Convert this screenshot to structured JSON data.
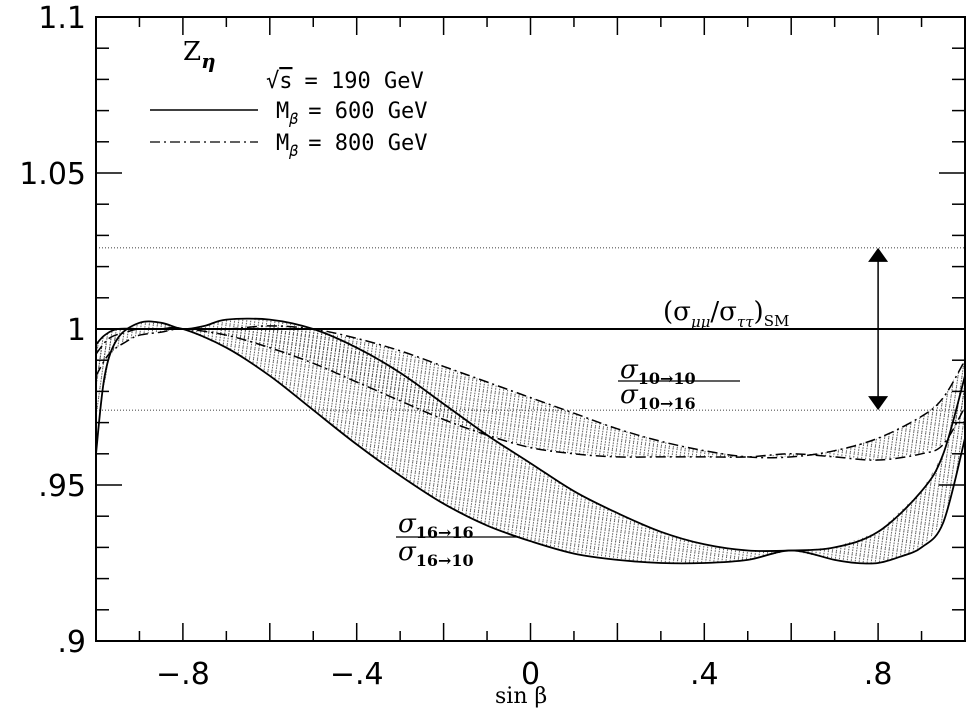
{
  "chart_data": {
    "type": "line",
    "title": "",
    "xlabel": "sin β",
    "ylabel": "",
    "xlim": [
      -1,
      1
    ],
    "ylim": [
      0.9,
      1.1
    ],
    "x_ticks": [
      {
        "value": -0.8,
        "label": "−.8"
      },
      {
        "value": -0.4,
        "label": "−.4"
      },
      {
        "value": 0,
        "label": "0"
      },
      {
        "value": 0.4,
        "label": ".4"
      },
      {
        "value": 0.8,
        "label": ".8"
      }
    ],
    "y_ticks": [
      {
        "value": 0.9,
        "label": ".9"
      },
      {
        "value": 0.95,
        "label": ".95"
      },
      {
        "value": 1.0,
        "label": "1"
      },
      {
        "value": 1.05,
        "label": "1.05"
      },
      {
        "value": 1.1,
        "label": "1.1"
      }
    ],
    "panel_label": "Z",
    "panel_label_sub": "η",
    "legend": {
      "placement": "top-left",
      "energy": {
        "prefix": "√",
        "symbol": "s",
        "value": "=  190  GeV"
      },
      "entries": [
        {
          "style": "solid",
          "symbol": "M",
          "sub": "β",
          "value": "=  600  GeV"
        },
        {
          "style": "dashdot",
          "symbol": "M",
          "sub": "β",
          "value": "=  800  GeV"
        }
      ]
    },
    "reference": {
      "y": 1.0,
      "label": "(σ",
      "label_sub1": "μμ",
      "label_mid": "/σ",
      "label_sub2": "ττ",
      "label_end": ")",
      "label_sub3": "SM"
    },
    "band": {
      "upper": 1.026,
      "lower": 0.974,
      "arrow_x": 0.8
    },
    "ratio_labels": [
      {
        "num": "σ",
        "num_sub": "10→10",
        "den": "σ",
        "den_sub": "10→16"
      },
      {
        "num": "σ",
        "num_sub": "16→16",
        "den": "σ",
        "den_sub": "16→10"
      }
    ],
    "series": [
      {
        "style": "solid",
        "group": "10→10",
        "x": [
          -1.0,
          -0.98,
          -0.95,
          -0.9,
          -0.85,
          -0.8,
          -0.75,
          -0.7,
          -0.6,
          -0.5,
          -0.4,
          -0.3,
          -0.2,
          -0.1,
          0.0,
          0.1,
          0.2,
          0.3,
          0.4,
          0.5,
          0.6,
          0.7,
          0.8,
          0.9,
          0.95,
          1.0
        ],
        "y": [
          0.96,
          0.985,
          0.997,
          1.002,
          1.002,
          1.0,
          1.001,
          1.003,
          1.003,
          1.0,
          0.994,
          0.986,
          0.976,
          0.966,
          0.957,
          0.948,
          0.941,
          0.935,
          0.931,
          0.929,
          0.929,
          0.93,
          0.935,
          0.948,
          0.96,
          0.985
        ]
      },
      {
        "style": "solid",
        "group": "16→16",
        "x": [
          -1.0,
          -0.98,
          -0.95,
          -0.9,
          -0.85,
          -0.8,
          -0.7,
          -0.6,
          -0.5,
          -0.4,
          -0.3,
          -0.2,
          -0.1,
          0.0,
          0.1,
          0.2,
          0.3,
          0.4,
          0.5,
          0.6,
          0.7,
          0.75,
          0.8,
          0.85,
          0.9,
          0.95,
          1.0
        ],
        "y": [
          0.995,
          0.998,
          1.0,
          1.0,
          1.0,
          1.0,
          0.994,
          0.985,
          0.974,
          0.963,
          0.953,
          0.944,
          0.937,
          0.932,
          0.928,
          0.926,
          0.925,
          0.925,
          0.926,
          0.929,
          0.926,
          0.925,
          0.925,
          0.927,
          0.93,
          0.938,
          0.965
        ]
      },
      {
        "style": "dashdot",
        "group": "10→10",
        "x": [
          -1.0,
          -0.97,
          -0.93,
          -0.9,
          -0.85,
          -0.8,
          -0.7,
          -0.6,
          -0.5,
          -0.4,
          -0.3,
          -0.2,
          -0.1,
          0.0,
          0.1,
          0.2,
          0.3,
          0.4,
          0.5,
          0.6,
          0.7,
          0.8,
          0.9,
          0.95,
          1.0
        ],
        "y": [
          0.992,
          0.997,
          0.999,
          1.0,
          1.0,
          1.0,
          1.0,
          1.001,
          1.0,
          0.997,
          0.993,
          0.988,
          0.983,
          0.978,
          0.973,
          0.968,
          0.964,
          0.961,
          0.959,
          0.959,
          0.961,
          0.965,
          0.972,
          0.978,
          0.99
        ]
      },
      {
        "style": "dashdot",
        "group": "16→16",
        "x": [
          -1.0,
          -0.97,
          -0.93,
          -0.9,
          -0.85,
          -0.8,
          -0.7,
          -0.6,
          -0.5,
          -0.4,
          -0.3,
          -0.2,
          -0.1,
          0.0,
          0.1,
          0.2,
          0.3,
          0.4,
          0.5,
          0.6,
          0.7,
          0.8,
          0.9,
          0.95,
          1.0
        ],
        "y": [
          0.985,
          0.992,
          0.996,
          0.998,
          0.999,
          1.0,
          0.998,
          0.994,
          0.989,
          0.983,
          0.977,
          0.971,
          0.966,
          0.962,
          0.96,
          0.959,
          0.959,
          0.959,
          0.959,
          0.96,
          0.959,
          0.958,
          0.96,
          0.963,
          0.975
        ]
      }
    ],
    "grid": false
  }
}
